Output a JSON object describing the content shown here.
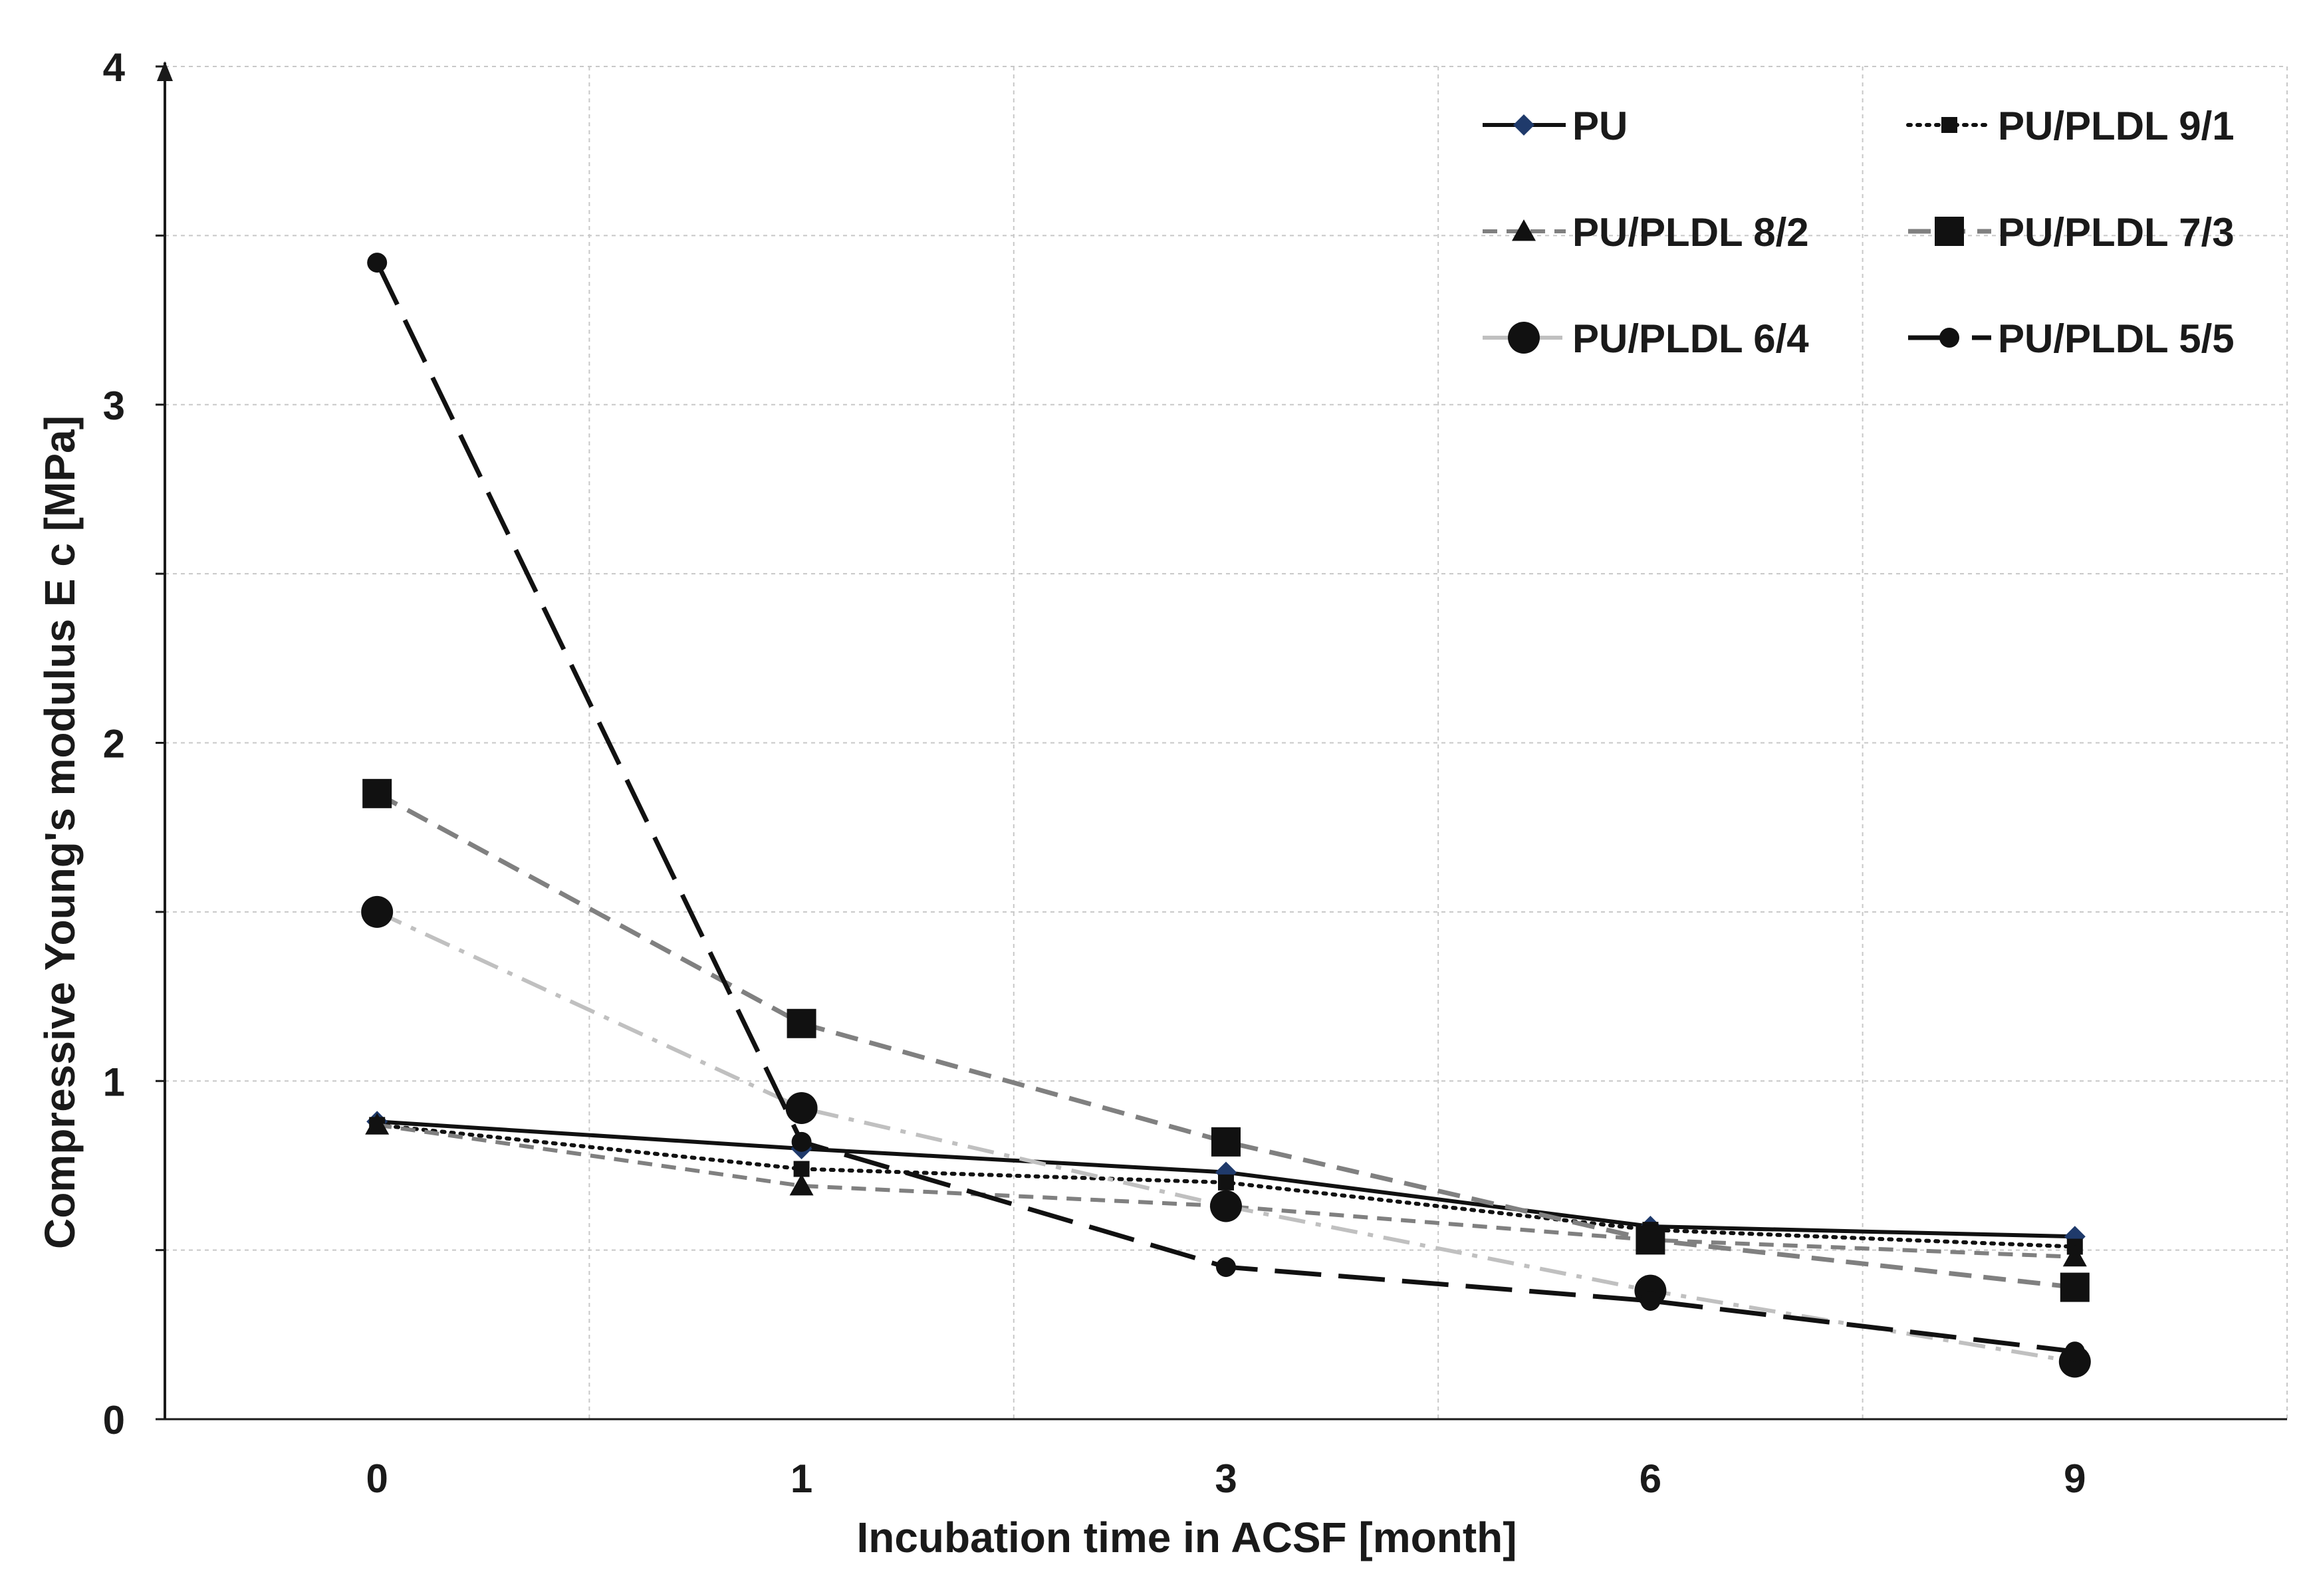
{
  "chart_data": {
    "type": "line",
    "title": "",
    "xlabel": "Incubation time in ACSF [month]",
    "ylabel": "Compressive Young's modulus E c [MPa]",
    "categories": [
      "0",
      "1",
      "3",
      "6",
      "9"
    ],
    "ylim": [
      0,
      4
    ],
    "yticks": [
      "0",
      "1",
      "2",
      "3",
      "4"
    ],
    "grid": true,
    "legend_position": "top-right",
    "series": [
      {
        "name": "PU",
        "values": [
          0.88,
          0.8,
          0.73,
          0.57,
          0.54
        ],
        "color": "#111111",
        "dash": "solid",
        "marker": "diamond",
        "marker_color": "#1f3a6b"
      },
      {
        "name": "PU/PLDL 9/1",
        "values": [
          0.87,
          0.74,
          0.7,
          0.56,
          0.51
        ],
        "color": "#111111",
        "dash": "dot",
        "marker": "square-small",
        "marker_color": "#111111"
      },
      {
        "name": "PU/PLDL 8/2",
        "values": [
          0.87,
          0.69,
          0.63,
          0.53,
          0.48
        ],
        "color": "#808080",
        "dash": "dash-short",
        "marker": "triangle",
        "marker_color": "#111111"
      },
      {
        "name": "PU/PLDL 7/3",
        "values": [
          1.85,
          1.17,
          0.82,
          0.53,
          0.39
        ],
        "color": "#808080",
        "dash": "dash",
        "marker": "square",
        "marker_color": "#111111"
      },
      {
        "name": "PU/PLDL 6/4",
        "values": [
          1.5,
          0.92,
          0.63,
          0.38,
          0.17
        ],
        "color": "#c0c0c0",
        "dash": "dash-dot",
        "marker": "circle",
        "marker_color": "#111111"
      },
      {
        "name": "PU/PLDL 5/5",
        "values": [
          3.42,
          0.82,
          0.45,
          0.35,
          0.2
        ],
        "color": "#111111",
        "dash": "dash-long",
        "marker": "circle-small",
        "marker_color": "#111111"
      }
    ]
  }
}
